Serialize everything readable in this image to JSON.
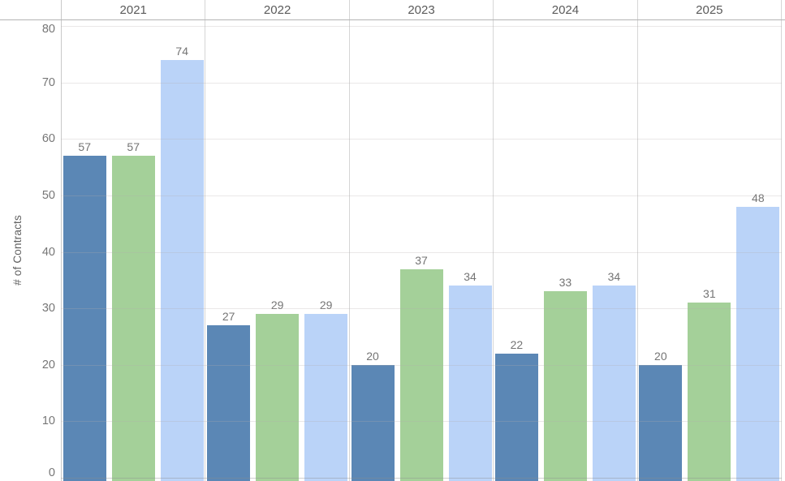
{
  "chart_data": {
    "type": "bar",
    "title": "",
    "xlabel": "",
    "ylabel": "# of Contracts",
    "ylim": [
      0,
      80
    ],
    "yticks": [
      0,
      10,
      20,
      30,
      40,
      50,
      60,
      70,
      80
    ],
    "grid": true,
    "legend": "none",
    "bar_value_labels": true,
    "categories": [
      "2021",
      "2022",
      "2023",
      "2024",
      "2025"
    ],
    "series": [
      {
        "name": "series-1-dark-blue",
        "color": "#5b87b5",
        "values": [
          57,
          27,
          20,
          22,
          20
        ]
      },
      {
        "name": "series-2-green",
        "color": "#a4d099",
        "values": [
          57,
          29,
          37,
          33,
          31
        ]
      },
      {
        "name": "series-3-light-blue",
        "color": "#bad3f8",
        "values": [
          74,
          29,
          34,
          34,
          48
        ]
      }
    ]
  },
  "colors": {
    "background": "#ffffff",
    "header_line": "#b4b4b4",
    "panel_divider": "#d6d6d6",
    "axis_line": "#c9c9c9",
    "tick_text": "#767676",
    "value_text": "#747474",
    "year_text": "#5a5a5a",
    "axis_title_text": "#606060"
  }
}
